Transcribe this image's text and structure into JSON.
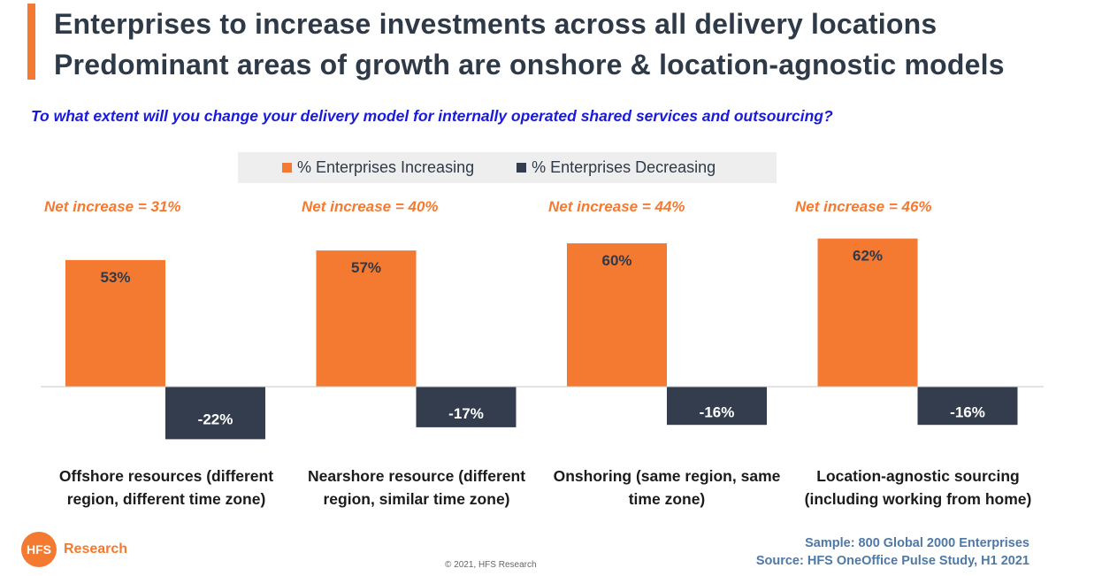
{
  "title_lines": [
    "Enterprises to increase investments across all delivery locations",
    "Predominant areas of growth are onshore & location-agnostic models"
  ],
  "question": "To what extent will you change your delivery model for internally operated shared services and outsourcing?",
  "legend": {
    "increasing": "% Enterprises Increasing",
    "decreasing": "% Enterprises Decreasing"
  },
  "colors": {
    "accent": "#f47a31",
    "increasing": "#f47a31",
    "decreasing": "#333d4d",
    "title": "#2f3a49",
    "question": "#1a1adb",
    "source": "#4e79a7"
  },
  "net_increase_labels": [
    "Net increase = 31%",
    "Net increase = 40%",
    "Net increase = 44%",
    "Net increase = 46%"
  ],
  "category_labels": [
    [
      "Offshore resources (different",
      "region, different time zone)"
    ],
    [
      "Nearshore resource (different",
      "region, similar time zone)"
    ],
    [
      "Onshoring (same region, same",
      "time zone)"
    ],
    [
      "Location-agnostic sourcing",
      "(including working from home)"
    ]
  ],
  "chart_data": {
    "type": "bar",
    "categories": [
      "Offshore resources (different region, different time zone)",
      "Nearshore resource (different region, similar time zone)",
      "Onshoring (same region, same time zone)",
      "Location-agnostic sourcing (including working from home)"
    ],
    "series": [
      {
        "name": "% Enterprises Increasing",
        "values": [
          53,
          57,
          60,
          62
        ]
      },
      {
        "name": "% Enterprises Decreasing",
        "values": [
          -22,
          -17,
          -16,
          -16
        ]
      }
    ],
    "data_labels": {
      "increasing": [
        "53%",
        "57%",
        "60%",
        "62%"
      ],
      "decreasing": [
        "-22%",
        "-17%",
        "-16%",
        "-16%"
      ]
    },
    "annotations": [
      "Net increase = 31%",
      "Net increase = 40%",
      "Net increase = 44%",
      "Net increase = 46%"
    ],
    "legend_position": "top-center",
    "grid": false
  },
  "logo": {
    "mark": "HFS",
    "text": "Research"
  },
  "copyright": "© 2021, HFS Research",
  "source_lines": [
    "Sample: 800 Global 2000 Enterprises",
    "Source:  HFS OneOffice Pulse Study, H1 2021"
  ]
}
